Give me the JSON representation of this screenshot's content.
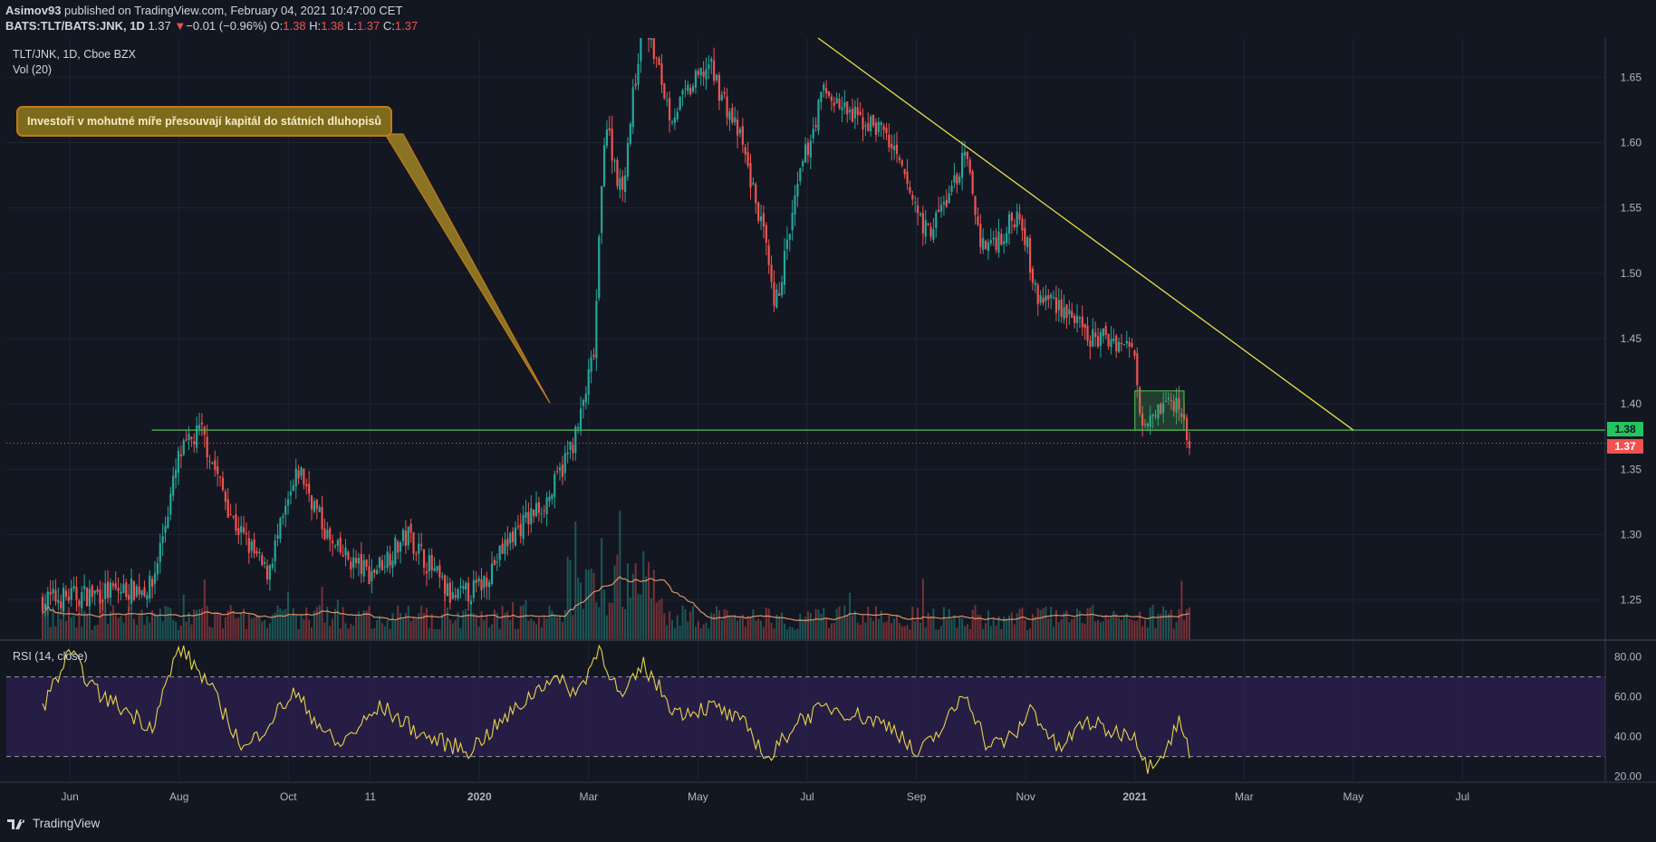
{
  "header": {
    "line1_author": "Asimov93",
    "line1_rest": " published on TradingView.com, February 04, 2021 10:47:00 CET",
    "symbol": "BATS:TLT/BATS:JNK, 1D",
    "last": "1.37",
    "change_arrow": "▼",
    "change": "−0.01 (−0.96%)",
    "o_label": "O:",
    "o_value": "1.38",
    "h_label": "H:",
    "h_value": "1.38",
    "l_label": "L:",
    "l_value": "1.37",
    "c_label": "C:",
    "c_value": "1.37"
  },
  "legend": {
    "series": "TLT/JNK, 1D, Cboe BZX",
    "volume": "Vol (20)",
    "rsi": "RSI (14, close)"
  },
  "annotation": {
    "text": "Investoři v mohutné míře přesouvají kapitál do státních dluhopisů"
  },
  "price_tags": {
    "support": "1.38",
    "last": "1.37"
  },
  "branding": {
    "logo_text": "TradingView"
  },
  "colors": {
    "up": "#26a69a",
    "down": "#ef5350",
    "trendline": "#e8e04a",
    "support": "#4caf50",
    "rsi": "#e8d44a",
    "rsi_band": "#2a1f4a",
    "background": "#131722"
  },
  "chart_data": [
    {
      "type": "candlestick",
      "title": "TLT/JNK, 1D, Cboe BZX",
      "y_ticks": [
        "1.25",
        "1.30",
        "1.35",
        "1.40",
        "1.45",
        "1.50",
        "1.55",
        "1.60",
        "1.65"
      ],
      "x_ticks": [
        "Jun",
        "Aug",
        "Oct",
        "11",
        "2020",
        "Mar",
        "May",
        "Jul",
        "Sep",
        "Nov",
        "2021",
        "Mar",
        "May",
        "Jul"
      ],
      "x_tick_positions": [
        0.5,
        2.5,
        4.5,
        6,
        8,
        10,
        12,
        14,
        16,
        18,
        20,
        22,
        24,
        26
      ],
      "x_tick_unit": "months since 2019-05",
      "ylim": [
        1.22,
        1.68
      ],
      "key_points": [
        {
          "t": 0.0,
          "v": 1.25
        },
        {
          "t": 2.0,
          "v": 1.26
        },
        {
          "t": 2.5,
          "v": 1.36
        },
        {
          "t": 2.9,
          "v": 1.38
        },
        {
          "t": 3.5,
          "v": 1.31
        },
        {
          "t": 4.1,
          "v": 1.27
        },
        {
          "t": 4.7,
          "v": 1.35
        },
        {
          "t": 5.3,
          "v": 1.29
        },
        {
          "t": 6.0,
          "v": 1.27
        },
        {
          "t": 6.7,
          "v": 1.3
        },
        {
          "t": 7.5,
          "v": 1.25
        },
        {
          "t": 8.0,
          "v": 1.26
        },
        {
          "t": 8.6,
          "v": 1.3
        },
        {
          "t": 9.3,
          "v": 1.33
        },
        {
          "t": 9.8,
          "v": 1.38
        },
        {
          "t": 10.1,
          "v": 1.44
        },
        {
          "t": 10.3,
          "v": 1.62
        },
        {
          "t": 10.6,
          "v": 1.56
        },
        {
          "t": 11.0,
          "v": 1.7
        },
        {
          "t": 11.5,
          "v": 1.62
        },
        {
          "t": 12.2,
          "v": 1.66
        },
        {
          "t": 12.8,
          "v": 1.6
        },
        {
          "t": 13.2,
          "v": 1.53
        },
        {
          "t": 13.4,
          "v": 1.47
        },
        {
          "t": 13.9,
          "v": 1.58
        },
        {
          "t": 14.3,
          "v": 1.64
        },
        {
          "t": 14.8,
          "v": 1.62
        },
        {
          "t": 15.4,
          "v": 1.61
        },
        {
          "t": 15.9,
          "v": 1.56
        },
        {
          "t": 16.2,
          "v": 1.53
        },
        {
          "t": 16.6,
          "v": 1.56
        },
        {
          "t": 16.9,
          "v": 1.59
        },
        {
          "t": 17.2,
          "v": 1.52
        },
        {
          "t": 17.6,
          "v": 1.53
        },
        {
          "t": 17.9,
          "v": 1.55
        },
        {
          "t": 18.2,
          "v": 1.48
        },
        {
          "t": 18.5,
          "v": 1.48
        },
        {
          "t": 18.8,
          "v": 1.47
        },
        {
          "t": 19.1,
          "v": 1.45
        },
        {
          "t": 19.6,
          "v": 1.45
        },
        {
          "t": 20.0,
          "v": 1.44
        },
        {
          "t": 20.1,
          "v": 1.39
        },
        {
          "t": 20.5,
          "v": 1.4
        },
        {
          "t": 20.8,
          "v": 1.4
        },
        {
          "t": 21.0,
          "v": 1.37
        }
      ],
      "last_close": 1.37,
      "support_level": 1.38,
      "last_price_marker": 1.37,
      "trendline": [
        {
          "t": 14.2,
          "v": 1.68
        },
        {
          "t": 24.0,
          "v": 1.38
        }
      ],
      "highlight_box": {
        "t0": 20.0,
        "t1": 20.9,
        "v0": 1.38,
        "v1": 1.41
      }
    },
    {
      "type": "bar",
      "title": "Vol (20)",
      "description": "Daily volume bars (up teal / down red) with 20-day moving average line; volume spike around March 2020."
    },
    {
      "type": "line",
      "title": "RSI (14, close)",
      "y_ticks": [
        "20.00",
        "40.00",
        "60.00",
        "80.00"
      ],
      "ylim": [
        18,
        88
      ],
      "band": [
        30,
        70
      ],
      "key_points": [
        {
          "t": 0.0,
          "v": 55
        },
        {
          "t": 0.5,
          "v": 82
        },
        {
          "t": 1.0,
          "v": 62
        },
        {
          "t": 2.0,
          "v": 45
        },
        {
          "t": 2.5,
          "v": 85
        },
        {
          "t": 3.0,
          "v": 68
        },
        {
          "t": 3.7,
          "v": 33
        },
        {
          "t": 4.6,
          "v": 62
        },
        {
          "t": 5.4,
          "v": 35
        },
        {
          "t": 6.2,
          "v": 55
        },
        {
          "t": 7.0,
          "v": 40
        },
        {
          "t": 7.8,
          "v": 33
        },
        {
          "t": 8.6,
          "v": 52
        },
        {
          "t": 9.3,
          "v": 70
        },
        {
          "t": 9.8,
          "v": 62
        },
        {
          "t": 10.2,
          "v": 85
        },
        {
          "t": 10.6,
          "v": 58
        },
        {
          "t": 11.0,
          "v": 76
        },
        {
          "t": 11.6,
          "v": 52
        },
        {
          "t": 12.3,
          "v": 55
        },
        {
          "t": 12.9,
          "v": 45
        },
        {
          "t": 13.3,
          "v": 28
        },
        {
          "t": 13.8,
          "v": 48
        },
        {
          "t": 14.4,
          "v": 55
        },
        {
          "t": 15.0,
          "v": 50
        },
        {
          "t": 15.6,
          "v": 45
        },
        {
          "t": 16.0,
          "v": 30
        },
        {
          "t": 16.5,
          "v": 45
        },
        {
          "t": 16.9,
          "v": 63
        },
        {
          "t": 17.3,
          "v": 35
        },
        {
          "t": 17.8,
          "v": 40
        },
        {
          "t": 18.1,
          "v": 55
        },
        {
          "t": 18.6,
          "v": 33
        },
        {
          "t": 19.1,
          "v": 48
        },
        {
          "t": 19.6,
          "v": 42
        },
        {
          "t": 20.0,
          "v": 42
        },
        {
          "t": 20.2,
          "v": 25
        },
        {
          "t": 20.6,
          "v": 35
        },
        {
          "t": 20.8,
          "v": 48
        },
        {
          "t": 21.0,
          "v": 33
        }
      ]
    }
  ]
}
